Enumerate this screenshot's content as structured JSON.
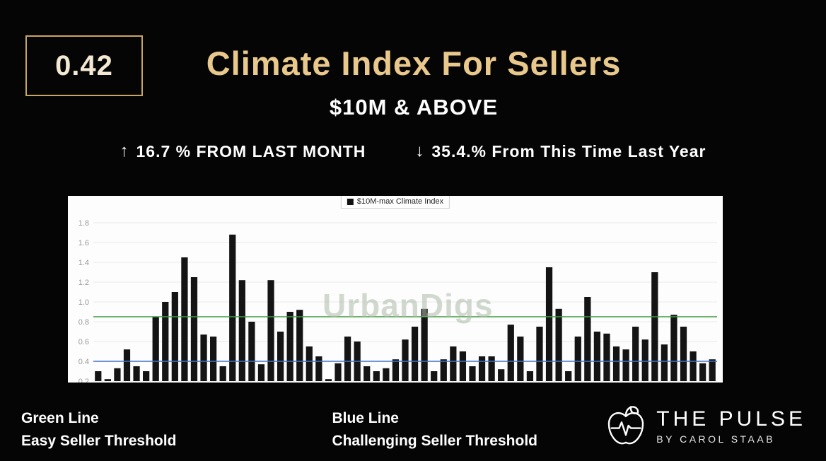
{
  "header": {
    "score": "0.42",
    "title": "Climate Index For Sellers",
    "subtitle": "$10M & ABOVE",
    "up_arrow": "↑",
    "stat_up": "16.7 % FROM LAST MONTH",
    "down_arrow": "↓",
    "stat_down": "35.4.% From This Time Last Year"
  },
  "chart_data": {
    "type": "bar",
    "legend": "$10M-max Climate Index",
    "watermark": "UrbanDigs",
    "yticks": [
      1.8,
      1.6,
      1.4,
      1.2,
      1.0,
      0.8,
      0.6,
      0.4,
      0.2
    ],
    "ylim": [
      0.2,
      1.9
    ],
    "bar_color": "#141414",
    "grid_color": "#e9e9e9",
    "tick_color": "#9a9a9a",
    "values": [
      0.3,
      0.22,
      0.33,
      0.52,
      0.35,
      0.3,
      0.85,
      1.0,
      1.1,
      1.45,
      1.25,
      0.67,
      0.65,
      0.35,
      1.68,
      1.22,
      0.8,
      0.37,
      1.22,
      0.7,
      0.9,
      0.92,
      0.55,
      0.45,
      0.22,
      0.38,
      0.65,
      0.6,
      0.35,
      0.3,
      0.33,
      0.42,
      0.62,
      0.75,
      0.93,
      0.3,
      0.42,
      0.55,
      0.5,
      0.35,
      0.45,
      0.45,
      0.32,
      0.77,
      0.65,
      0.3,
      0.75,
      1.35,
      0.93,
      0.3,
      0.65,
      1.05,
      0.7,
      0.68,
      0.55,
      0.52,
      0.75,
      0.62,
      1.3,
      0.57,
      0.87,
      0.75,
      0.5,
      0.38,
      0.42
    ],
    "thresholds": [
      {
        "name": "easy-seller-threshold",
        "value": 0.85,
        "color": "#3f9c3f"
      },
      {
        "name": "challenging-seller-threshold",
        "value": 0.4,
        "color": "#4273c8"
      }
    ]
  },
  "notes": {
    "green_title": "Green Line",
    "green_desc": "Easy Seller Threshold",
    "blue_title": "Blue Line",
    "blue_desc": "Challenging Seller Threshold"
  },
  "branding": {
    "name": "THE PULSE",
    "byline": "BY CAROL STAAB"
  }
}
